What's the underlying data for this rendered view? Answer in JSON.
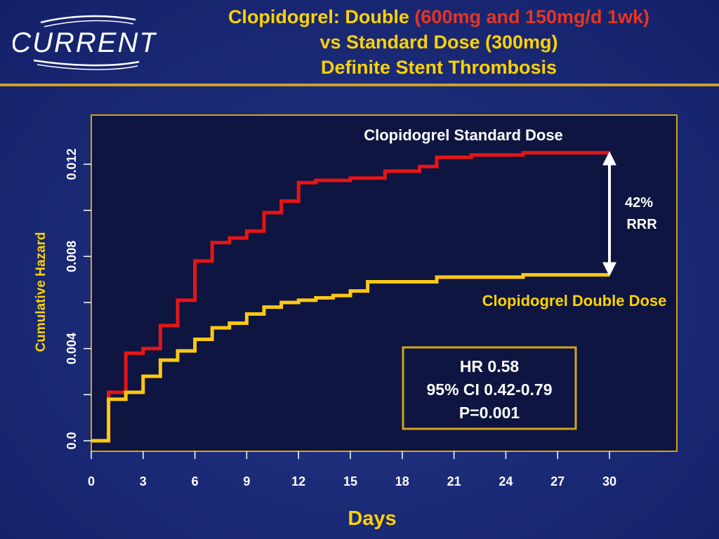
{
  "logo": {
    "text": "CURRENT"
  },
  "header": {
    "title_part1": "Clopidogrel: Double ",
    "title_part2": "(600mg and 150mg/d 1wk)",
    "title_line2": "vs Standard Dose (300mg)",
    "title_line3": "Definite Stent Thrombosis"
  },
  "colors": {
    "title": "#ffd200",
    "title_highlight": "#e8351f",
    "standard_line": "#e81414",
    "double_line": "#ffc814",
    "plot_bg": "#0d1540",
    "frame": "#d4a11a"
  },
  "annotations": {
    "rrr_value": "42%",
    "rrr_label": "RRR",
    "hr": "HR 0.58",
    "ci": "95% CI 0.42-0.79",
    "p": "P=0.001"
  },
  "chart_data": {
    "type": "line",
    "step": true,
    "xlabel": "Days",
    "ylabel": "Cumulative Hazard",
    "xlim": [
      0,
      30
    ],
    "ylim": [
      0,
      0.0136
    ],
    "x_ticks": [
      0,
      3,
      6,
      9,
      12,
      15,
      18,
      21,
      24,
      27,
      30
    ],
    "x_tick_labels": [
      "0",
      "3",
      "6",
      "9",
      "12",
      "15",
      "18",
      "21",
      "24",
      "27",
      "30"
    ],
    "y_ticks": [
      0,
      0.002,
      0.004,
      0.006,
      0.008,
      0.01,
      0.012
    ],
    "y_tick_labels": [
      "0.0",
      "",
      "0.004",
      "",
      "0.008",
      "",
      "0.012"
    ],
    "grid": false,
    "series": [
      {
        "name": "Clopidogrel Standard Dose",
        "color": "#e81414",
        "x": [
          0,
          1,
          2,
          3,
          4,
          5,
          6,
          7,
          8,
          9,
          10,
          11,
          12,
          13,
          15,
          17,
          19,
          20,
          22,
          25,
          30
        ],
        "y": [
          0,
          0.0021,
          0.0038,
          0.004,
          0.005,
          0.0061,
          0.0078,
          0.0086,
          0.0088,
          0.0091,
          0.0099,
          0.0104,
          0.0112,
          0.0113,
          0.0114,
          0.0117,
          0.0119,
          0.0123,
          0.0124,
          0.0125,
          0.0125
        ]
      },
      {
        "name": "Clopidogrel Double Dose",
        "color": "#ffc814",
        "x": [
          0,
          1,
          2,
          3,
          4,
          5,
          6,
          7,
          8,
          9,
          10,
          11,
          12,
          13,
          14,
          15,
          16,
          20,
          25,
          30
        ],
        "y": [
          0,
          0.0018,
          0.0021,
          0.0028,
          0.0035,
          0.0039,
          0.0044,
          0.0049,
          0.0051,
          0.0055,
          0.0058,
          0.006,
          0.0061,
          0.0062,
          0.0063,
          0.0065,
          0.0069,
          0.0071,
          0.0072,
          0.0072
        ]
      }
    ]
  }
}
